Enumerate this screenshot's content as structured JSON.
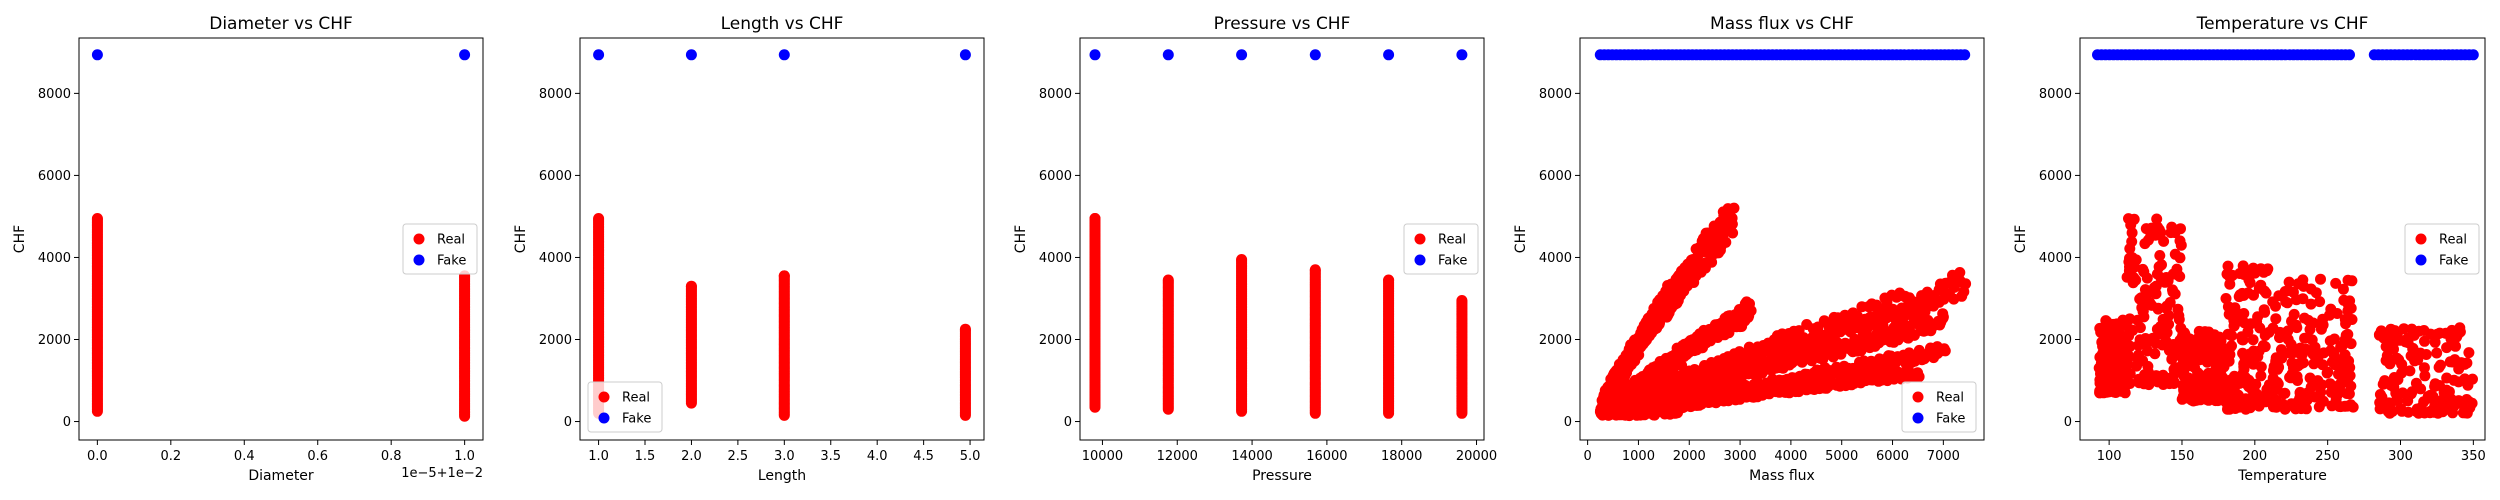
{
  "colors": {
    "real": "#ff0000",
    "fake": "#0000ff"
  },
  "chart_data": [
    {
      "type": "scatter",
      "title": "Diameter vs CHF",
      "xlabel": "Diameter",
      "ylabel": "CHF",
      "offset_label": "1e−5+1e−2",
      "xlim": [
        -0.05,
        1.05
      ],
      "ylim": [
        -450,
        9350
      ],
      "xticks": [
        0.0,
        0.2,
        0.4,
        0.6,
        0.8,
        1.0
      ],
      "xtick_labels": [
        "0.0",
        "0.2",
        "0.4",
        "0.6",
        "0.8",
        "1.0"
      ],
      "yticks": [
        0,
        2000,
        4000,
        6000,
        8000
      ],
      "ytick_labels": [
        "0",
        "2000",
        "4000",
        "6000",
        "8000"
      ],
      "legend": "center-right",
      "grid": false,
      "series": [
        {
          "name": "Real",
          "color": "red",
          "kind": "columns",
          "columns": [
            {
              "x": 0.0,
              "ymin": 250,
              "ymax": 4950
            },
            {
              "x": 1.0,
              "ymin": 130,
              "ymax": 3550
            }
          ]
        },
        {
          "name": "Fake",
          "color": "blue",
          "x": [
            0.0,
            1.0
          ],
          "y": [
            8940,
            8940
          ]
        }
      ]
    },
    {
      "type": "scatter",
      "title": "Length vs CHF",
      "xlabel": "Length",
      "ylabel": "CHF",
      "xlim": [
        0.8,
        5.15
      ],
      "ylim": [
        -450,
        9350
      ],
      "xticks": [
        1.0,
        1.5,
        2.0,
        2.5,
        3.0,
        3.5,
        4.0,
        4.5,
        5.0
      ],
      "xtick_labels": [
        "1.0",
        "1.5",
        "2.0",
        "2.5",
        "3.0",
        "3.5",
        "4.0",
        "4.5",
        "5.0"
      ],
      "yticks": [
        0,
        2000,
        4000,
        6000,
        8000
      ],
      "ytick_labels": [
        "0",
        "2000",
        "4000",
        "6000",
        "8000"
      ],
      "legend": "lower-left",
      "grid": false,
      "series": [
        {
          "name": "Real",
          "color": "red",
          "kind": "columns",
          "columns": [
            {
              "x": 1.0,
              "ymin": 200,
              "ymax": 4950
            },
            {
              "x": 2.0,
              "ymin": 450,
              "ymax": 3300
            },
            {
              "x": 3.0,
              "ymin": 150,
              "ymax": 3550
            },
            {
              "x": 4.95,
              "ymin": 150,
              "ymax": 2250
            }
          ]
        },
        {
          "name": "Fake",
          "color": "blue",
          "x": [
            1.0,
            2.0,
            3.0,
            4.95
          ],
          "y": [
            8940,
            8940,
            8940,
            8940
          ]
        }
      ]
    },
    {
      "type": "scatter",
      "title": "Pressure vs CHF",
      "xlabel": "Pressure",
      "ylabel": "CHF",
      "xlim": [
        9400,
        20200
      ],
      "ylim": [
        -450,
        9350
      ],
      "xticks": [
        10000,
        12000,
        14000,
        16000,
        18000,
        20000
      ],
      "xtick_labels": [
        "10000",
        "12000",
        "14000",
        "16000",
        "18000",
        "20000"
      ],
      "yticks": [
        0,
        2000,
        4000,
        6000,
        8000
      ],
      "ytick_labels": [
        "0",
        "2000",
        "4000",
        "6000",
        "8000"
      ],
      "legend": "center-right",
      "grid": false,
      "series": [
        {
          "name": "Real",
          "color": "red",
          "kind": "columns",
          "columns": [
            {
              "x": 9800,
              "ymin": 350,
              "ymax": 4950
            },
            {
              "x": 11760,
              "ymin": 300,
              "ymax": 3450
            },
            {
              "x": 13720,
              "ymin": 250,
              "ymax": 3950
            },
            {
              "x": 15690,
              "ymin": 200,
              "ymax": 3700
            },
            {
              "x": 17650,
              "ymin": 200,
              "ymax": 3450
            },
            {
              "x": 19610,
              "ymin": 200,
              "ymax": 2950
            }
          ]
        },
        {
          "name": "Fake",
          "color": "blue",
          "x": [
            9800,
            11760,
            13720,
            15690,
            17650,
            19610
          ],
          "y": [
            8940,
            8940,
            8940,
            8940,
            8940,
            8940
          ]
        }
      ]
    },
    {
      "type": "scatter",
      "title": "Mass flux vs CHF",
      "xlabel": "Mass flux",
      "ylabel": "CHF",
      "xlim": [
        -150,
        7800
      ],
      "ylim": [
        -450,
        9350
      ],
      "xticks": [
        0,
        1000,
        2000,
        3000,
        4000,
        5000,
        6000,
        7000
      ],
      "xtick_labels": [
        "0",
        "1000",
        "2000",
        "3000",
        "4000",
        "5000",
        "6000",
        "7000"
      ],
      "yticks": [
        0,
        2000,
        4000,
        6000,
        8000
      ],
      "ytick_labels": [
        "0",
        "2000",
        "4000",
        "6000",
        "8000"
      ],
      "legend": "lower-right",
      "grid": false,
      "series": [
        {
          "name": "Real",
          "color": "red",
          "kind": "fans",
          "fans": [
            {
              "x0": 300,
              "y0": 500,
              "x1": 2850,
              "y1": 4950
            },
            {
              "x0": 300,
              "y0": 400,
              "x1": 1950,
              "y1": 3500
            },
            {
              "x0": 400,
              "y0": 350,
              "x1": 1650,
              "y1": 3150
            },
            {
              "x0": 400,
              "y0": 300,
              "x1": 3200,
              "y1": 2700
            },
            {
              "x0": 500,
              "y0": 300,
              "x1": 7400,
              "y1": 3350
            },
            {
              "x0": 600,
              "y0": 250,
              "x1": 6600,
              "y1": 2700
            },
            {
              "x0": 700,
              "y0": 200,
              "x1": 7000,
              "y1": 2400
            },
            {
              "x0": 800,
              "y0": 150,
              "x1": 7000,
              "y1": 1700
            },
            {
              "x0": 1000,
              "y0": 150,
              "x1": 6500,
              "y1": 1200
            }
          ]
        },
        {
          "name": "Fake",
          "color": "blue",
          "kind": "band",
          "xmin": 250,
          "xmax": 7420,
          "y": 8940
        }
      ]
    },
    {
      "type": "scatter",
      "title": "Temperature vs CHF",
      "xlabel": "Temperature",
      "ylabel": "CHF",
      "xlim": [
        80,
        358
      ],
      "ylim": [
        -450,
        9350
      ],
      "xticks": [
        100,
        150,
        200,
        250,
        300,
        350
      ],
      "xtick_labels": [
        "100",
        "150",
        "200",
        "250",
        "300",
        "350"
      ],
      "yticks": [
        0,
        2000,
        4000,
        6000,
        8000
      ],
      "ytick_labels": [
        "0",
        "2000",
        "4000",
        "6000",
        "8000"
      ],
      "legend": "center-right",
      "grid": false,
      "series": [
        {
          "name": "Real",
          "color": "red",
          "kind": "cloud",
          "clusters": [
            {
              "xmin": 93,
              "xmax": 112,
              "ymin": 700,
              "ymax": 2500
            },
            {
              "xmin": 112,
              "xmax": 150,
              "ymin": 900,
              "ymax": 4950
            },
            {
              "xmin": 150,
              "xmax": 180,
              "ymin": 500,
              "ymax": 2200
            },
            {
              "xmin": 180,
              "xmax": 215,
              "ymin": 300,
              "ymax": 3800
            },
            {
              "xmin": 215,
              "xmax": 268,
              "ymin": 300,
              "ymax": 3500
            },
            {
              "xmin": 285,
              "xmax": 350,
              "ymin": 200,
              "ymax": 2300
            }
          ]
        },
        {
          "name": "Fake",
          "color": "blue",
          "kind": "band",
          "ranges": [
            [
              92,
              265
            ],
            [
              282,
              350
            ]
          ],
          "y": 8940
        }
      ]
    }
  ]
}
